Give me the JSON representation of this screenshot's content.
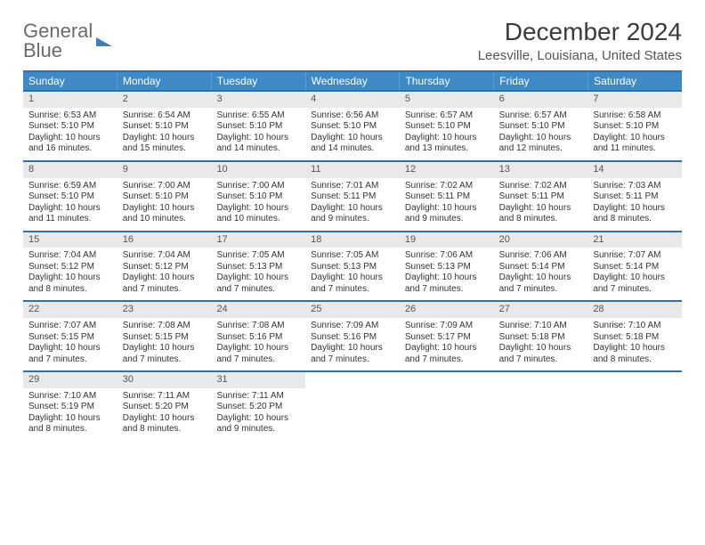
{
  "brand": {
    "word1": "General",
    "word2": "Blue"
  },
  "title": "December 2024",
  "location": "Leesville, Louisiana, United States",
  "colors": {
    "header_bg": "#3d8ac7",
    "header_border": "#2f6faf",
    "daynum_bg": "#e7e9eb",
    "text": "#333333"
  },
  "days_of_week": [
    "Sunday",
    "Monday",
    "Tuesday",
    "Wednesday",
    "Thursday",
    "Friday",
    "Saturday"
  ],
  "weeks": [
    [
      {
        "n": "1",
        "sr": "Sunrise: 6:53 AM",
        "ss": "Sunset: 5:10 PM",
        "d1": "Daylight: 10 hours",
        "d2": "and 16 minutes."
      },
      {
        "n": "2",
        "sr": "Sunrise: 6:54 AM",
        "ss": "Sunset: 5:10 PM",
        "d1": "Daylight: 10 hours",
        "d2": "and 15 minutes."
      },
      {
        "n": "3",
        "sr": "Sunrise: 6:55 AM",
        "ss": "Sunset: 5:10 PM",
        "d1": "Daylight: 10 hours",
        "d2": "and 14 minutes."
      },
      {
        "n": "4",
        "sr": "Sunrise: 6:56 AM",
        "ss": "Sunset: 5:10 PM",
        "d1": "Daylight: 10 hours",
        "d2": "and 14 minutes."
      },
      {
        "n": "5",
        "sr": "Sunrise: 6:57 AM",
        "ss": "Sunset: 5:10 PM",
        "d1": "Daylight: 10 hours",
        "d2": "and 13 minutes."
      },
      {
        "n": "6",
        "sr": "Sunrise: 6:57 AM",
        "ss": "Sunset: 5:10 PM",
        "d1": "Daylight: 10 hours",
        "d2": "and 12 minutes."
      },
      {
        "n": "7",
        "sr": "Sunrise: 6:58 AM",
        "ss": "Sunset: 5:10 PM",
        "d1": "Daylight: 10 hours",
        "d2": "and 11 minutes."
      }
    ],
    [
      {
        "n": "8",
        "sr": "Sunrise: 6:59 AM",
        "ss": "Sunset: 5:10 PM",
        "d1": "Daylight: 10 hours",
        "d2": "and 11 minutes."
      },
      {
        "n": "9",
        "sr": "Sunrise: 7:00 AM",
        "ss": "Sunset: 5:10 PM",
        "d1": "Daylight: 10 hours",
        "d2": "and 10 minutes."
      },
      {
        "n": "10",
        "sr": "Sunrise: 7:00 AM",
        "ss": "Sunset: 5:10 PM",
        "d1": "Daylight: 10 hours",
        "d2": "and 10 minutes."
      },
      {
        "n": "11",
        "sr": "Sunrise: 7:01 AM",
        "ss": "Sunset: 5:11 PM",
        "d1": "Daylight: 10 hours",
        "d2": "and 9 minutes."
      },
      {
        "n": "12",
        "sr": "Sunrise: 7:02 AM",
        "ss": "Sunset: 5:11 PM",
        "d1": "Daylight: 10 hours",
        "d2": "and 9 minutes."
      },
      {
        "n": "13",
        "sr": "Sunrise: 7:02 AM",
        "ss": "Sunset: 5:11 PM",
        "d1": "Daylight: 10 hours",
        "d2": "and 8 minutes."
      },
      {
        "n": "14",
        "sr": "Sunrise: 7:03 AM",
        "ss": "Sunset: 5:11 PM",
        "d1": "Daylight: 10 hours",
        "d2": "and 8 minutes."
      }
    ],
    [
      {
        "n": "15",
        "sr": "Sunrise: 7:04 AM",
        "ss": "Sunset: 5:12 PM",
        "d1": "Daylight: 10 hours",
        "d2": "and 8 minutes."
      },
      {
        "n": "16",
        "sr": "Sunrise: 7:04 AM",
        "ss": "Sunset: 5:12 PM",
        "d1": "Daylight: 10 hours",
        "d2": "and 7 minutes."
      },
      {
        "n": "17",
        "sr": "Sunrise: 7:05 AM",
        "ss": "Sunset: 5:13 PM",
        "d1": "Daylight: 10 hours",
        "d2": "and 7 minutes."
      },
      {
        "n": "18",
        "sr": "Sunrise: 7:05 AM",
        "ss": "Sunset: 5:13 PM",
        "d1": "Daylight: 10 hours",
        "d2": "and 7 minutes."
      },
      {
        "n": "19",
        "sr": "Sunrise: 7:06 AM",
        "ss": "Sunset: 5:13 PM",
        "d1": "Daylight: 10 hours",
        "d2": "and 7 minutes."
      },
      {
        "n": "20",
        "sr": "Sunrise: 7:06 AM",
        "ss": "Sunset: 5:14 PM",
        "d1": "Daylight: 10 hours",
        "d2": "and 7 minutes."
      },
      {
        "n": "21",
        "sr": "Sunrise: 7:07 AM",
        "ss": "Sunset: 5:14 PM",
        "d1": "Daylight: 10 hours",
        "d2": "and 7 minutes."
      }
    ],
    [
      {
        "n": "22",
        "sr": "Sunrise: 7:07 AM",
        "ss": "Sunset: 5:15 PM",
        "d1": "Daylight: 10 hours",
        "d2": "and 7 minutes."
      },
      {
        "n": "23",
        "sr": "Sunrise: 7:08 AM",
        "ss": "Sunset: 5:15 PM",
        "d1": "Daylight: 10 hours",
        "d2": "and 7 minutes."
      },
      {
        "n": "24",
        "sr": "Sunrise: 7:08 AM",
        "ss": "Sunset: 5:16 PM",
        "d1": "Daylight: 10 hours",
        "d2": "and 7 minutes."
      },
      {
        "n": "25",
        "sr": "Sunrise: 7:09 AM",
        "ss": "Sunset: 5:16 PM",
        "d1": "Daylight: 10 hours",
        "d2": "and 7 minutes."
      },
      {
        "n": "26",
        "sr": "Sunrise: 7:09 AM",
        "ss": "Sunset: 5:17 PM",
        "d1": "Daylight: 10 hours",
        "d2": "and 7 minutes."
      },
      {
        "n": "27",
        "sr": "Sunrise: 7:10 AM",
        "ss": "Sunset: 5:18 PM",
        "d1": "Daylight: 10 hours",
        "d2": "and 7 minutes."
      },
      {
        "n": "28",
        "sr": "Sunrise: 7:10 AM",
        "ss": "Sunset: 5:18 PM",
        "d1": "Daylight: 10 hours",
        "d2": "and 8 minutes."
      }
    ],
    [
      {
        "n": "29",
        "sr": "Sunrise: 7:10 AM",
        "ss": "Sunset: 5:19 PM",
        "d1": "Daylight: 10 hours",
        "d2": "and 8 minutes."
      },
      {
        "n": "30",
        "sr": "Sunrise: 7:11 AM",
        "ss": "Sunset: 5:20 PM",
        "d1": "Daylight: 10 hours",
        "d2": "and 8 minutes."
      },
      {
        "n": "31",
        "sr": "Sunrise: 7:11 AM",
        "ss": "Sunset: 5:20 PM",
        "d1": "Daylight: 10 hours",
        "d2": "and 9 minutes."
      },
      {
        "empty": true
      },
      {
        "empty": true
      },
      {
        "empty": true
      },
      {
        "empty": true
      }
    ]
  ]
}
